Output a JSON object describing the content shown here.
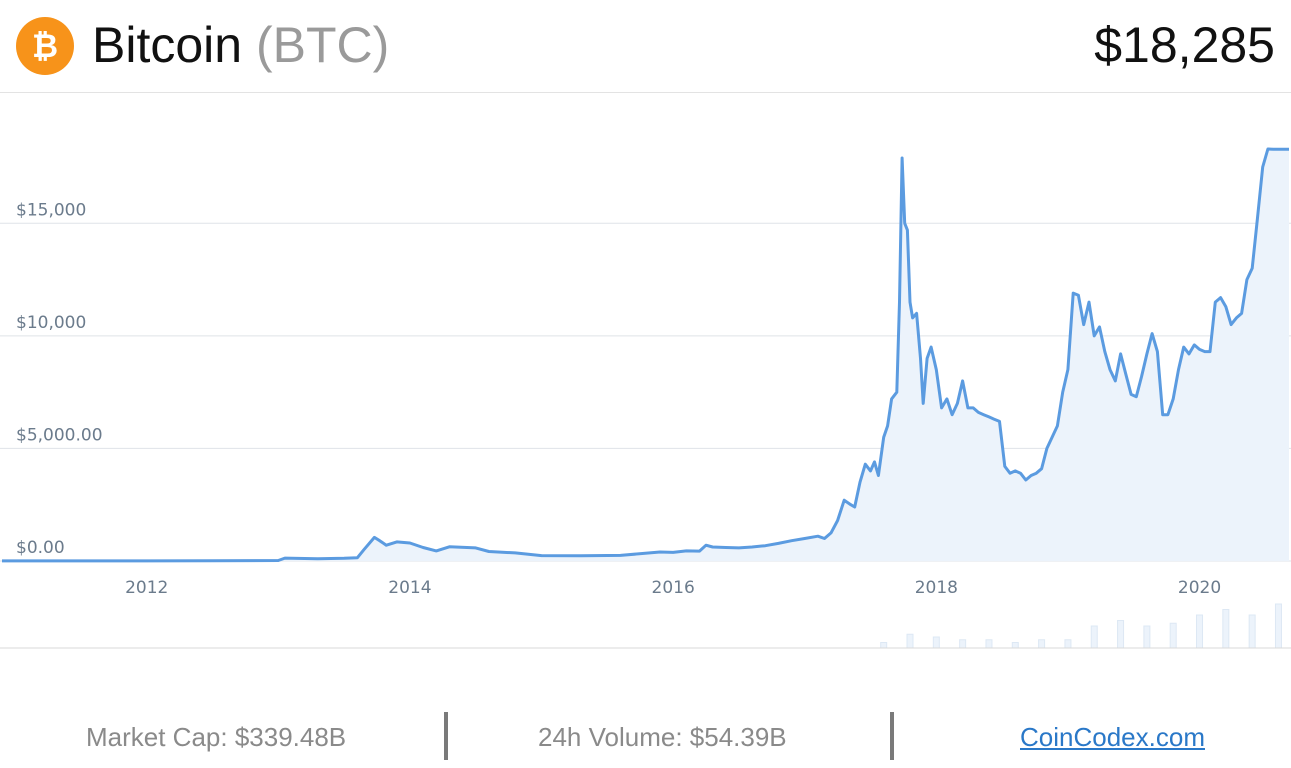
{
  "coin": {
    "name": "Bitcoin",
    "symbol": "(BTC)",
    "price": "$18,285",
    "logo_icon": "bitcoin-icon",
    "logo_glyph": "₿",
    "logo_color": "#f7931a"
  },
  "footer": {
    "market_cap": "Market Cap: $339.48B",
    "volume": "24h Volume: $54.39B",
    "brand": "CoinCodex.com"
  },
  "colors": {
    "line": "#5b9be0",
    "area": "#ecf3fb",
    "grid": "#dfe3e8",
    "axis_text": "#6b7b8c"
  },
  "chart_data": {
    "type": "area",
    "title": "",
    "xlabel": "",
    "ylabel": "",
    "xlim": [
      2010.9,
      2020.68
    ],
    "ylim": [
      0,
      19100
    ],
    "grid": true,
    "y_ticks": [
      {
        "value": 0,
        "label": "$0.00"
      },
      {
        "value": 5000,
        "label": "$5,000.00"
      },
      {
        "value": 10000,
        "label": "$10,000"
      },
      {
        "value": 15000,
        "label": "$15,000"
      }
    ],
    "x_ticks": [
      {
        "value": 2012,
        "label": "2012"
      },
      {
        "value": 2014,
        "label": "2014"
      },
      {
        "value": 2016,
        "label": "2016"
      },
      {
        "value": 2018,
        "label": "2018"
      },
      {
        "value": 2020,
        "label": "2020"
      }
    ],
    "series": [
      {
        "x": [
          2010.9,
          2011.5,
          2012.0,
          2012.5,
          2013.0,
          2013.05,
          2013.3,
          2013.5,
          2013.6,
          2013.65,
          2013.73,
          2013.77,
          2013.82,
          2013.9,
          2014.0,
          2014.1,
          2014.2,
          2014.3,
          2014.5,
          2014.6,
          2014.8,
          2015.0,
          2015.3,
          2015.6,
          2015.9,
          2016.0,
          2016.1,
          2016.2,
          2016.25,
          2016.3,
          2016.4,
          2016.5,
          2016.6,
          2016.7,
          2016.8,
          2016.9,
          2017.0,
          2017.1,
          2017.15,
          2017.2,
          2017.25,
          2017.3,
          2017.35,
          2017.38,
          2017.42,
          2017.46,
          2017.5,
          2017.53,
          2017.56,
          2017.6,
          2017.63,
          2017.66,
          2017.7,
          2017.72,
          2017.74,
          2017.76,
          2017.78,
          2017.8,
          2017.82,
          2017.85,
          2017.88,
          2017.9,
          2017.93,
          2017.96,
          2018.0,
          2018.04,
          2018.08,
          2018.12,
          2018.16,
          2018.2,
          2018.24,
          2018.28,
          2018.32,
          2018.36,
          2018.4,
          2018.44,
          2018.48,
          2018.52,
          2018.56,
          2018.6,
          2018.64,
          2018.68,
          2018.72,
          2018.76,
          2018.8,
          2018.84,
          2018.88,
          2018.92,
          2018.96,
          2019.0,
          2019.04,
          2019.08,
          2019.12,
          2019.16,
          2019.2,
          2019.24,
          2019.28,
          2019.32,
          2019.36,
          2019.4,
          2019.44,
          2019.48,
          2019.52,
          2019.56,
          2019.6,
          2019.64,
          2019.68,
          2019.72,
          2019.76,
          2019.8,
          2019.84,
          2019.88,
          2019.92,
          2019.96,
          2020.0,
          2020.04,
          2020.08,
          2020.12,
          2020.16,
          2020.2,
          2020.24,
          2020.28,
          2020.32,
          2020.36,
          2020.4,
          2020.44,
          2020.48,
          2020.52,
          2020.56,
          2020.6,
          2020.64,
          2020.68
        ],
        "y": [
          4,
          6,
          5,
          10,
          20,
          130,
          100,
          120,
          140,
          500,
          1050,
          900,
          700,
          850,
          800,
          600,
          450,
          630,
          580,
          420,
          360,
          240,
          230,
          250,
          400,
          380,
          450,
          440,
          700,
          620,
          600,
          580,
          620,
          680,
          780,
          900,
          1000,
          1100,
          1000,
          1250,
          1800,
          2700,
          2500,
          2400,
          3500,
          4300,
          4000,
          4400,
          3800,
          5500,
          6000,
          7200,
          7500,
          11500,
          17900,
          15000,
          14700,
          11500,
          10800,
          11000,
          9000,
          7000,
          9000,
          9500,
          8500,
          6800,
          7200,
          6500,
          7000,
          8000,
          6800,
          6800,
          6600,
          6500,
          6400,
          6300,
          6200,
          4200,
          3900,
          4000,
          3900,
          3600,
          3800,
          3900,
          4100,
          5000,
          5500,
          6000,
          7500,
          8500,
          11900,
          11800,
          10500,
          11500,
          10000,
          10400,
          9300,
          8500,
          8000,
          9200,
          8300,
          7400,
          7300,
          8200,
          9200,
          10100,
          9300,
          6500,
          6500,
          7200,
          8500,
          9500,
          9200,
          9600,
          9400,
          9300,
          9300,
          11500,
          11700,
          11300,
          10500,
          10800,
          11000,
          12500,
          13000,
          15200,
          17500,
          18300,
          18285,
          18285,
          18285,
          18285
        ]
      }
    ],
    "volume": {
      "x": [
        2017.6,
        2017.8,
        2018.0,
        2018.2,
        2018.4,
        2018.6,
        2018.8,
        2019.0,
        2019.2,
        2019.4,
        2019.6,
        2019.8,
        2020.0,
        2020.2,
        2020.4,
        2020.6
      ],
      "y": [
        2,
        5,
        4,
        3,
        3,
        2,
        3,
        3,
        8,
        10,
        8,
        9,
        12,
        14,
        12,
        16
      ]
    }
  }
}
